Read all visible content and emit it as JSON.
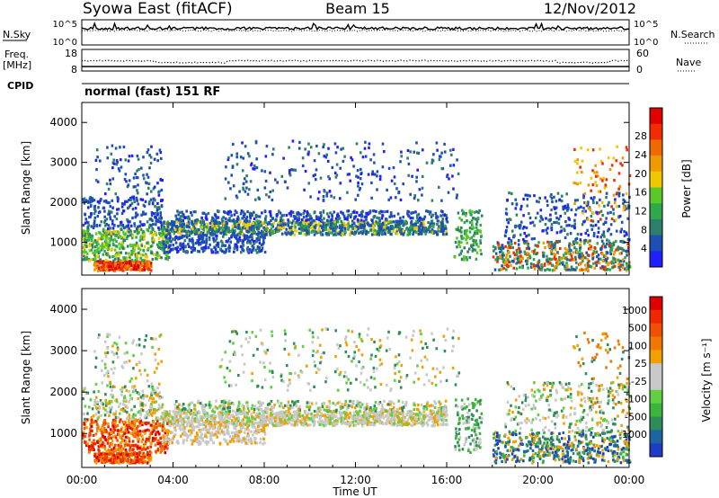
{
  "header": {
    "station": "Syowa East (fitACF)",
    "beam": "Beam 15",
    "date": "12/Nov/2012"
  },
  "noise_panel": {
    "left_label": "N.Sky",
    "right_label": "N.Search",
    "tick_top": "10^5",
    "tick_bottom": "10^0"
  },
  "freq_panel": {
    "left_label_1": "Freq.",
    "left_label_2": "[MHz]",
    "left_tick_top": "18",
    "left_tick_bottom": "8",
    "right_label": "Nave",
    "right_tick_top": "60",
    "right_tick_bottom": "0"
  },
  "cpid": {
    "label": "CPID",
    "value": "normal (fast) 151 RF"
  },
  "chart_data": [
    {
      "type": "heatmap",
      "name_key": "power",
      "ylabel": "Slant Range [km]",
      "ylim": [
        180,
        4500
      ],
      "yticks": [
        "1000",
        "2000",
        "3000",
        "4000"
      ],
      "xlim": [
        0,
        24
      ],
      "x_unit": "hours UT",
      "colorbar_label": "Power [dB]",
      "colorbar_ticks": [
        "4",
        "8",
        "12",
        "16",
        "20",
        "24",
        "28"
      ],
      "colorbar_colors": [
        "#2020ff",
        "#1e50b4",
        "#2e7f6a",
        "#2ea84a",
        "#5bc82a",
        "#f0c800",
        "#f09a00",
        "#f06800",
        "#f02c00",
        "#e00000"
      ]
    },
    {
      "type": "heatmap",
      "name_key": "velocity",
      "ylabel": "Slant Range [km]",
      "ylim": [
        180,
        4500
      ],
      "yticks": [
        "1000",
        "2000",
        "3000",
        "4000"
      ],
      "xlim": [
        0,
        24
      ],
      "x_unit": "hours UT",
      "colorbar_label": "Velocity [m s⁻¹]",
      "colorbar_ticks": [
        "1000",
        "500",
        "100",
        "25",
        "-25",
        "-100",
        "-500",
        "-1000"
      ],
      "colorbar_colors": [
        "#1e3cc8",
        "#1e64a0",
        "#2e8c5a",
        "#3cb43c",
        "#60d040",
        "#c8c8c8",
        "#c8c8c8",
        "#f0a000",
        "#f07800",
        "#f05000",
        "#f02800",
        "#e00000"
      ]
    }
  ],
  "x_axis": {
    "tick_labels": [
      "00:00",
      "04:00",
      "08:00",
      "12:00",
      "16:00",
      "20:00",
      "00:00"
    ],
    "label": "Time UT"
  }
}
